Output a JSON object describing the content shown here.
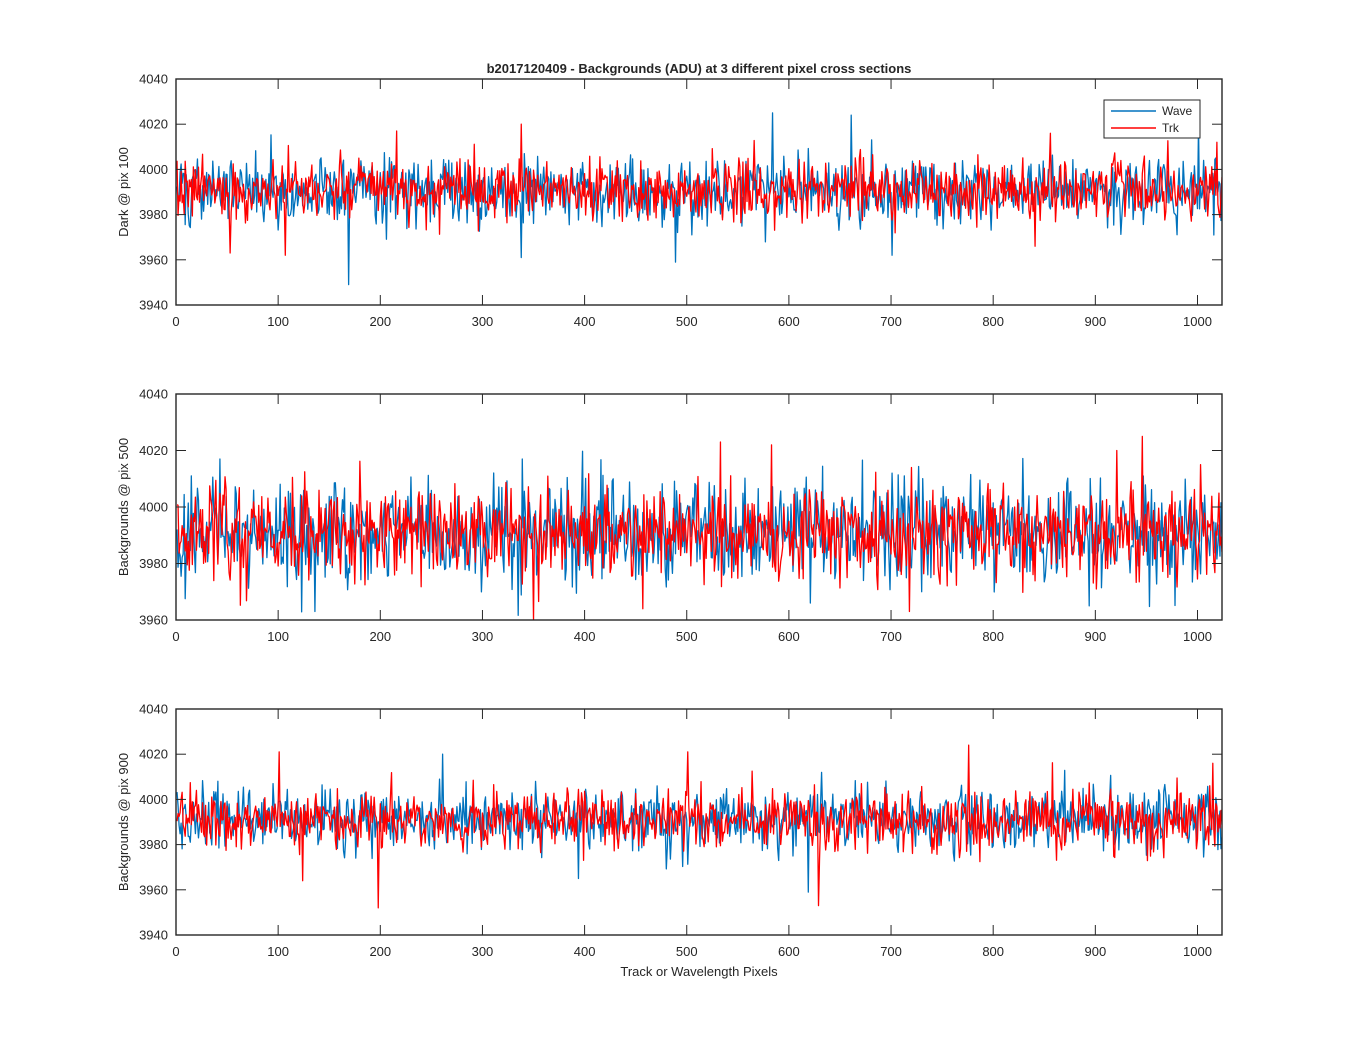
{
  "figure_title": "b2017120409 - Backgrounds (ADU) at 3 different pixel cross sections",
  "colors": {
    "wave": "#0072BD",
    "trk": "#FF0000",
    "axis": "#262626",
    "background": "#ffffff"
  },
  "chart_data": [
    {
      "type": "line",
      "title": "b2017120409 - Backgrounds (ADU) at 3 different pixel cross sections",
      "xlabel": "",
      "ylabel": "Dark @ pix 100",
      "xlim": [
        0,
        1024
      ],
      "ylim": [
        3940,
        4040
      ],
      "xticks": [
        "0",
        "100",
        "200",
        "300",
        "400",
        "500",
        "600",
        "700",
        "800",
        "900",
        "1000"
      ],
      "yticks": [
        "3940",
        "3960",
        "3980",
        "4000",
        "4020",
        "4040"
      ],
      "legend": {
        "location": "top-right",
        "entries": [
          "Wave",
          "Trk"
        ]
      },
      "grid": false,
      "series": [
        {
          "name": "Wave",
          "n": 1024,
          "mean": 3991,
          "std": 7.5,
          "seed": 101,
          "spikes": [
            [
              168,
              3949
            ],
            [
              583,
              4025
            ],
            [
              660,
              4024
            ],
            [
              337,
              3961
            ],
            [
              488,
              3959
            ],
            [
              1000,
              4020
            ],
            [
              700,
              3962
            ]
          ]
        },
        {
          "name": "Trk",
          "n": 1024,
          "mean": 3991,
          "std": 6.5,
          "seed": 202,
          "spikes": [
            [
              52,
              3963
            ],
            [
              106,
              3962
            ],
            [
              337,
              4020
            ],
            [
              215,
              4017
            ],
            [
              1018,
              4012
            ],
            [
              840,
              3966
            ],
            [
              855,
              4016
            ]
          ]
        }
      ]
    },
    {
      "type": "line",
      "title": "",
      "xlabel": "",
      "ylabel": "Backgrounds @ pix 500",
      "xlim": [
        0,
        1024
      ],
      "ylim": [
        3960,
        4040
      ],
      "xticks": [
        "0",
        "100",
        "200",
        "300",
        "400",
        "500",
        "600",
        "700",
        "800",
        "900",
        "1000"
      ],
      "yticks": [
        "3960",
        "3980",
        "4000",
        "4020",
        "4040"
      ],
      "grid": false,
      "series": [
        {
          "name": "Wave",
          "n": 1024,
          "mean": 3991,
          "std": 8.5,
          "seed": 303,
          "spikes": [
            [
              135,
              3963
            ],
            [
              42,
              4017
            ],
            [
              338,
              4017
            ],
            [
              620,
              3966
            ],
            [
              893,
              3965
            ],
            [
              700,
              4012
            ]
          ]
        },
        {
          "name": "Trk",
          "n": 1024,
          "mean": 3991,
          "std": 8.5,
          "seed": 404,
          "spikes": [
            [
              532,
              4023
            ],
            [
              582,
              4022
            ],
            [
              717,
              3963
            ],
            [
              945,
              4025
            ],
            [
              456,
              3964
            ],
            [
              920,
              4020
            ],
            [
              1002,
              4015
            ]
          ]
        }
      ]
    },
    {
      "type": "line",
      "title": "",
      "xlabel": "Track or Wavelength Pixels",
      "ylabel": "Backgrounds @ pix 900",
      "xlim": [
        0,
        1024
      ],
      "ylim": [
        3940,
        4040
      ],
      "xticks": [
        "0",
        "100",
        "200",
        "300",
        "400",
        "500",
        "600",
        "700",
        "800",
        "900",
        "1000"
      ],
      "yticks": [
        "3940",
        "3960",
        "3980",
        "4000",
        "4020",
        "4040"
      ],
      "grid": false,
      "series": [
        {
          "name": "Wave",
          "n": 1024,
          "mean": 3991,
          "std": 7.0,
          "seed": 505,
          "spikes": [
            [
              260,
              4020
            ],
            [
              618,
              3959
            ],
            [
              40,
              4008
            ],
            [
              393,
              3965
            ]
          ]
        },
        {
          "name": "Trk",
          "n": 1024,
          "mean": 3991,
          "std": 6.5,
          "seed": 606,
          "spikes": [
            [
              197,
              3952
            ],
            [
              628,
              3953
            ],
            [
              100,
              4021
            ],
            [
              500,
              4021
            ],
            [
              775,
              4024
            ],
            [
              123,
              3964
            ],
            [
              1014,
              4016
            ]
          ]
        }
      ]
    }
  ]
}
